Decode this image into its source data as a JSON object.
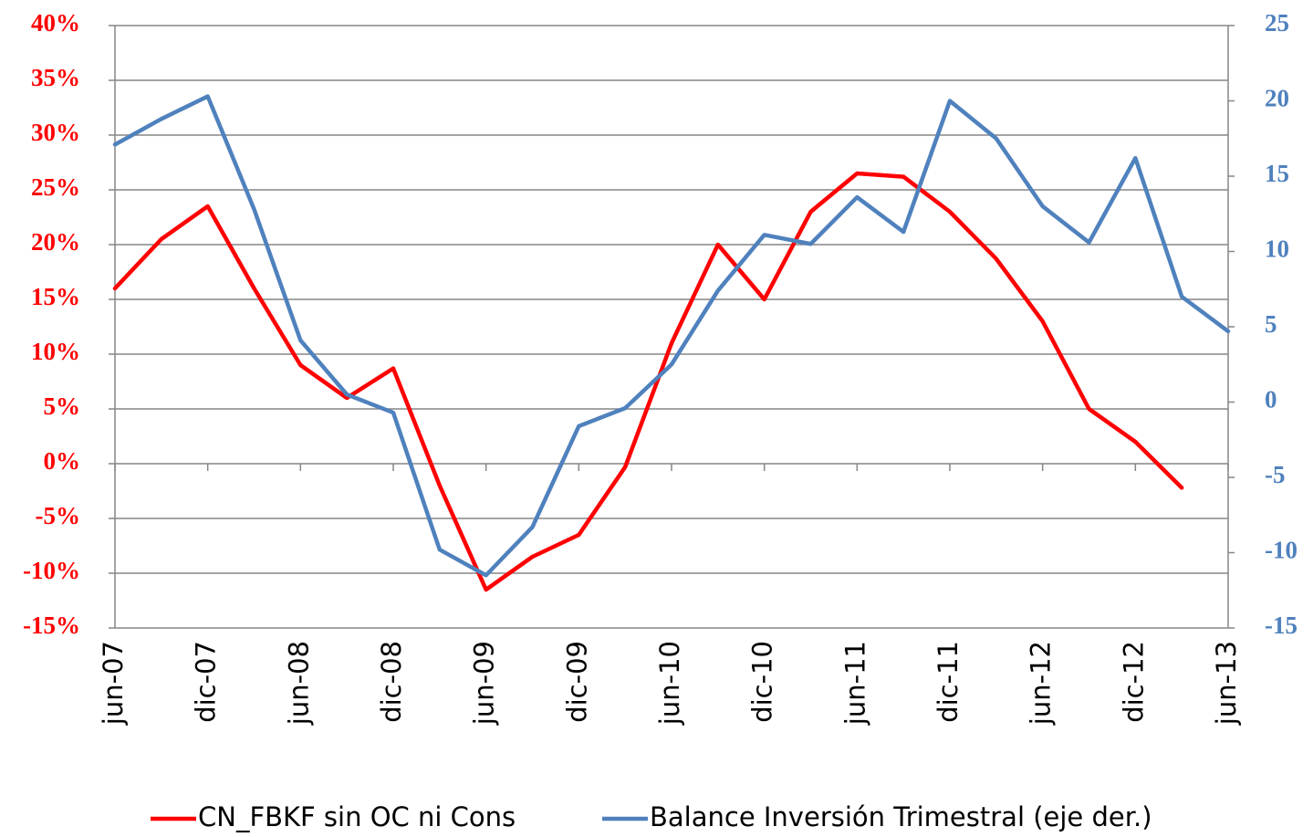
{
  "chart_data": {
    "type": "line",
    "categories": [
      "jun-07",
      null,
      "dic-07",
      null,
      "jun-08",
      null,
      "dic-08",
      null,
      "jun-09",
      null,
      "dic-09",
      null,
      "jun-10",
      null,
      "dic-10",
      null,
      "jun-11",
      null,
      "dic-11",
      null,
      "jun-12",
      null,
      "dic-12",
      null,
      "jun-13"
    ],
    "series": [
      {
        "name": "CN_FBKF sin OC ni Cons",
        "color": "#ff0000",
        "values": [
          16,
          20.5,
          23.5,
          16,
          9,
          6,
          8.7,
          -2,
          -11.5,
          -8.5,
          -6.5,
          -0.3,
          11,
          20,
          15,
          23,
          26.5,
          26.2,
          23,
          18.7,
          13,
          5,
          2,
          -2.2,
          null
        ]
      },
      {
        "name": "Balance Inversión Trimestral (eje der.)",
        "color": "#4f81bd",
        "axis": "y2",
        "values": [
          17.1,
          18.8,
          20.3,
          12.8,
          4.1,
          0.5,
          -0.7,
          -9.8,
          -11.5,
          -8.3,
          -1.6,
          -0.4,
          2.5,
          7.4,
          11.1,
          10.5,
          13.6,
          11.3,
          20.0,
          17.5,
          13.0,
          10.6,
          16.2,
          7.0,
          4.7
        ]
      }
    ],
    "ylim": [
      -15,
      40
    ],
    "yticks": [
      {
        "value": -15,
        "label": "-15%"
      },
      {
        "value": -10,
        "label": "-10%"
      },
      {
        "value": -5,
        "label": "-5%"
      },
      {
        "value": 0,
        "label": "0%"
      },
      {
        "value": 5,
        "label": "5%"
      },
      {
        "value": 10,
        "label": "10%"
      },
      {
        "value": 15,
        "label": "15%"
      },
      {
        "value": 20,
        "label": "20%"
      },
      {
        "value": 25,
        "label": "25%"
      },
      {
        "value": 30,
        "label": "30%"
      },
      {
        "value": 35,
        "label": "35%"
      },
      {
        "value": 40,
        "label": "40%"
      }
    ],
    "y2lim": [
      -15,
      25
    ],
    "y2ticks": [
      -15,
      -10,
      -5,
      0,
      5,
      10,
      15,
      20,
      25
    ],
    "grid": true,
    "legend": "bottom"
  }
}
